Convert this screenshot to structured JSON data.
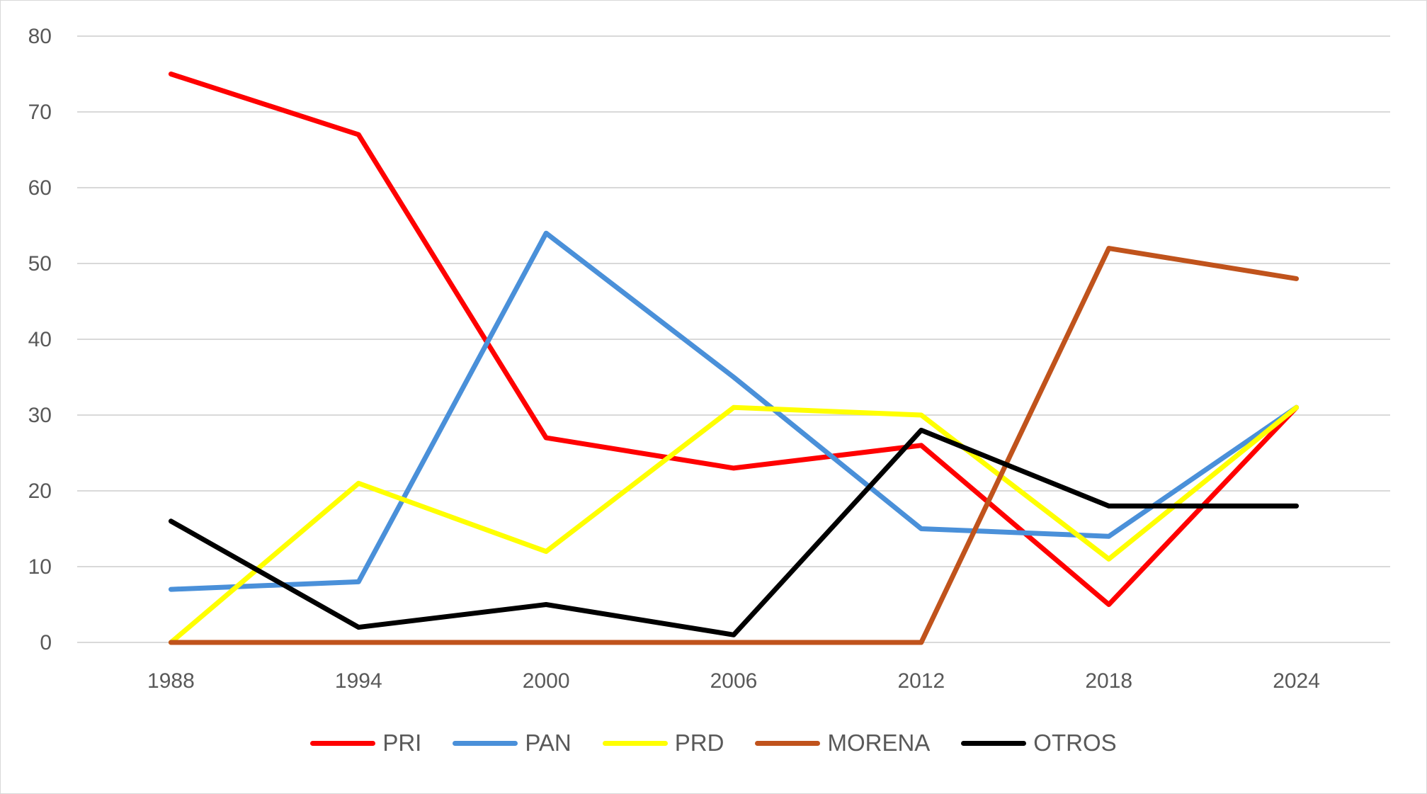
{
  "chart_data": {
    "type": "line",
    "title": "",
    "xlabel": "",
    "ylabel": "",
    "categories": [
      "1988",
      "1994",
      "2000",
      "2006",
      "2012",
      "2018",
      "2024"
    ],
    "ylim": [
      0,
      80
    ],
    "yticks": [
      0,
      10,
      20,
      30,
      40,
      50,
      60,
      70,
      80
    ],
    "grid": true,
    "legend_position": "bottom",
    "series": [
      {
        "name": "PRI",
        "color": "#ff0000",
        "values": [
          75,
          67,
          27,
          23,
          26,
          5,
          31
        ]
      },
      {
        "name": "PAN",
        "color": "#4a90d9",
        "values": [
          7,
          8,
          54,
          35,
          15,
          14,
          31
        ]
      },
      {
        "name": "PRD",
        "color": "#ffff00",
        "values": [
          0,
          21,
          12,
          31,
          30,
          11,
          31
        ]
      },
      {
        "name": "MORENA",
        "color": "#c0531c",
        "values": [
          0,
          0,
          0,
          0,
          0,
          52,
          48
        ]
      },
      {
        "name": "OTROS",
        "color": "#000000",
        "values": [
          16,
          2,
          5,
          1,
          28,
          18,
          18
        ]
      }
    ]
  }
}
